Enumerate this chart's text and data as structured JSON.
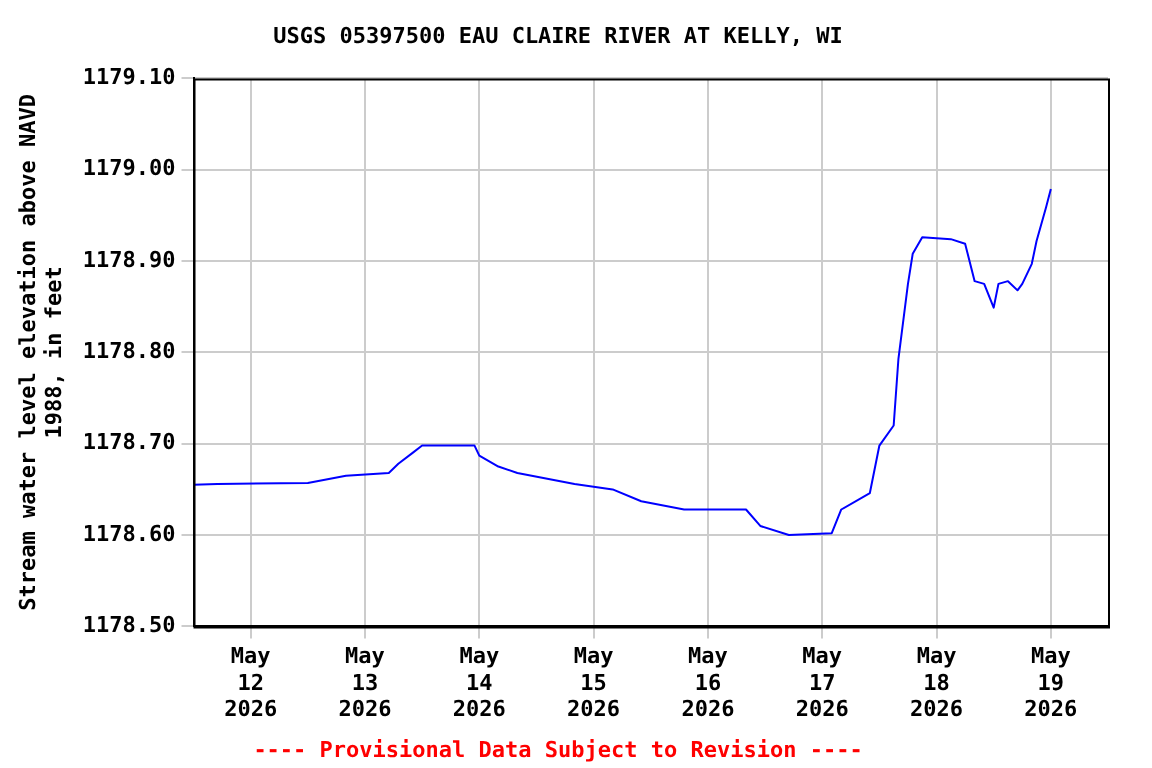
{
  "chart_data": {
    "type": "line",
    "title": "USGS 05397500 EAU CLAIRE RIVER AT KELLY, WI",
    "ylabel": "Stream water level elevation above NAVD 1988, in feet",
    "annotations": [
      "---- Provisional Data Subject to Revision ----"
    ],
    "x": [
      "2026-05-11T12:00",
      "2026-05-11T17:00",
      "2026-05-12T12:00",
      "2026-05-12T20:00",
      "2026-05-13T05:00",
      "2026-05-13T07:00",
      "2026-05-13T10:00",
      "2026-05-13T12:00",
      "2026-05-13T23:00",
      "2026-05-14T00:00",
      "2026-05-14T04:00",
      "2026-05-14T08:00",
      "2026-05-14T20:00",
      "2026-05-15T04:00",
      "2026-05-15T10:00",
      "2026-05-15T19:00",
      "2026-05-16T08:00",
      "2026-05-16T11:00",
      "2026-05-16T17:00",
      "2026-05-17T02:00",
      "2026-05-17T04:00",
      "2026-05-17T10:00",
      "2026-05-17T12:00",
      "2026-05-17T15:00",
      "2026-05-17T16:00",
      "2026-05-17T18:00",
      "2026-05-17T19:00",
      "2026-05-17T21:00",
      "2026-05-18T03:00",
      "2026-05-18T06:00",
      "2026-05-18T08:00",
      "2026-05-18T10:00",
      "2026-05-18T12:00",
      "2026-05-18T13:00",
      "2026-05-18T15:00",
      "2026-05-18T17:00",
      "2026-05-18T18:00",
      "2026-05-18T20:00",
      "2026-05-18T21:00",
      "2026-05-18T23:00",
      "2026-05-19T00:00"
    ],
    "series": [
      {
        "color": "#0000ff",
        "values": [
          1178.655,
          1178.656,
          1178.657,
          1178.665,
          1178.668,
          1178.678,
          1178.69,
          1178.698,
          1178.698,
          1178.687,
          1178.675,
          1178.668,
          1178.656,
          1178.65,
          1178.637,
          1178.628,
          1178.628,
          1178.61,
          1178.6,
          1178.602,
          1178.628,
          1178.646,
          1178.698,
          1178.72,
          1178.793,
          1178.875,
          1178.908,
          1178.926,
          1178.924,
          1178.919,
          1178.878,
          1178.875,
          1178.849,
          1178.875,
          1178.878,
          1178.868,
          1178.875,
          1178.897,
          1178.922,
          1178.959,
          1178.979
        ]
      }
    ],
    "xlim": [
      "2026-05-11T12:00",
      "2026-05-19T12:00"
    ],
    "xticks": [
      {
        "value": "2026-05-12",
        "label": "May 12 2026"
      },
      {
        "value": "2026-05-13",
        "label": "May 13 2026"
      },
      {
        "value": "2026-05-14",
        "label": "May 14 2026"
      },
      {
        "value": "2026-05-15",
        "label": "May 15 2026"
      },
      {
        "value": "2026-05-16",
        "label": "May 16 2026"
      },
      {
        "value": "2026-05-17",
        "label": "May 17 2026"
      },
      {
        "value": "2026-05-18",
        "label": "May 18 2026"
      },
      {
        "value": "2026-05-19",
        "label": "May 19 2026"
      }
    ],
    "ylim": [
      1178.5,
      1179.1
    ],
    "yticks": [
      {
        "value": 1178.5,
        "label": "1178.50"
      },
      {
        "value": 1178.6,
        "label": "1178.60"
      },
      {
        "value": 1178.7,
        "label": "1178.70"
      },
      {
        "value": 1178.8,
        "label": "1178.80"
      },
      {
        "value": 1178.9,
        "label": "1178.90"
      },
      {
        "value": 1179.0,
        "label": "1179.00"
      },
      {
        "value": 1179.1,
        "label": "1179.10"
      }
    ],
    "grid": true,
    "legend": false,
    "marker": "none",
    "line_style": "solid"
  }
}
